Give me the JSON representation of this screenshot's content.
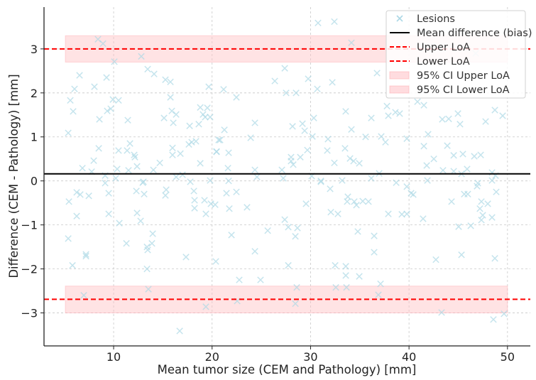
{
  "chart_data": {
    "type": "scatter",
    "title": "",
    "xlabel": "Mean tumor size (CEM and Pathology) [mm]",
    "ylabel": "Difference (CEM - Pathology) [mm]",
    "xlim": [
      2.93,
      52.32
    ],
    "ylim": [
      -3.75,
      3.95
    ],
    "x_ticks": [
      10,
      20,
      30,
      40,
      50
    ],
    "x_tick_labels": [
      "10",
      "20",
      "30",
      "40",
      "50"
    ],
    "y_ticks": [
      -3,
      -2,
      -1,
      0,
      1,
      2,
      3
    ],
    "y_tick_labels": [
      "−3",
      "−2",
      "−1",
      "0",
      "1",
      "2",
      "3"
    ],
    "grid": true,
    "legend_placement": "top-right",
    "bias": 0.16,
    "upper_loa": 3.0,
    "lower_loa": -2.69,
    "ci_upper_loa": [
      2.7,
      3.3
    ],
    "ci_lower_loa": [
      -3.0,
      -2.39
    ],
    "ci_x_range": [
      5.1,
      50.0
    ],
    "colors": {
      "points": "#add8e6",
      "bias": "#000000",
      "loa": "#ff0000",
      "ci": "#ffc0c4"
    },
    "legend": [
      "Lesions",
      "Mean difference (bias)",
      "Upper LoA",
      "Lower LoA",
      "95% CI Upper LoA",
      "95% CI Lower LoA"
    ],
    "series": [
      {
        "name": "Lesions",
        "points": [
          [
            8.41,
            3.22
          ],
          [
            8.92,
            3.12
          ],
          [
            10.07,
            2.71
          ],
          [
            12.81,
            2.83
          ],
          [
            6.54,
            2.4
          ],
          [
            9.28,
            2.35
          ],
          [
            13.46,
            2.54
          ],
          [
            14.11,
            2.43
          ],
          [
            15.26,
            2.3
          ],
          [
            15.77,
            2.25
          ],
          [
            6.03,
            2.09
          ],
          [
            8.05,
            2.14
          ],
          [
            19.66,
            2.14
          ],
          [
            5.6,
            1.83
          ],
          [
            9.93,
            1.85
          ],
          [
            10.5,
            1.83
          ],
          [
            15.77,
            1.9
          ],
          [
            5.89,
            1.58
          ],
          [
            9.35,
            1.59
          ],
          [
            9.71,
            1.64
          ],
          [
            8.56,
            1.4
          ],
          [
            11.44,
            1.38
          ],
          [
            15.12,
            1.43
          ],
          [
            15.91,
            1.59
          ],
          [
            16.35,
            1.51
          ],
          [
            16.06,
            1.32
          ],
          [
            17.72,
            1.25
          ],
          [
            18.65,
            1.29
          ],
          [
            18.8,
            1.67
          ],
          [
            19.52,
            1.66
          ],
          [
            19.08,
            1.51
          ],
          [
            19.3,
            1.45
          ],
          [
            19.8,
            1.45
          ],
          [
            5.39,
            1.09
          ],
          [
            8.49,
            0.74
          ],
          [
            10.5,
            0.69
          ],
          [
            11.37,
            0.69
          ],
          [
            11.66,
            0.85
          ],
          [
            12.09,
            0.59
          ],
          [
            12.16,
            0.54
          ],
          [
            15.98,
            0.75
          ],
          [
            15.98,
            0.59
          ],
          [
            16.78,
            0.62
          ],
          [
            17.64,
            0.83
          ],
          [
            17.93,
            0.88
          ],
          [
            18.36,
            0.9
          ],
          [
            20.45,
            0.66
          ],
          [
            20.67,
            0.93
          ],
          [
            7.98,
            0.46
          ],
          [
            6.83,
            0.29
          ],
          [
            7.77,
            0.21
          ],
          [
            10.36,
            0.27
          ],
          [
            11.51,
            0.24
          ],
          [
            12.38,
            0.33
          ],
          [
            14.04,
            0.25
          ],
          [
            14.69,
            0.41
          ],
          [
            18.8,
            0.4
          ],
          [
            9.14,
            0.12
          ],
          [
            10.22,
            0.06
          ],
          [
            16.35,
            0.09
          ],
          [
            17.0,
            0.14
          ],
          [
            19.8,
            0.01
          ],
          [
            13.03,
            -0.02
          ],
          [
            17.79,
            -0.02
          ],
          [
            30.76,
            3.59
          ],
          [
            32.42,
            3.62
          ],
          [
            34.15,
            3.14
          ],
          [
            27.38,
            2.56
          ],
          [
            26.37,
            2.27
          ],
          [
            29.76,
            2.32
          ],
          [
            21.17,
            2.08
          ],
          [
            22.47,
            1.9
          ],
          [
            27.52,
            2.0
          ],
          [
            28.53,
            2.0
          ],
          [
            30.69,
            2.09
          ],
          [
            32.21,
            2.24
          ],
          [
            36.75,
            2.45
          ],
          [
            37.76,
            1.7
          ],
          [
            37.9,
            1.48
          ],
          [
            33.57,
            1.58
          ],
          [
            36.17,
            1.43
          ],
          [
            30.33,
            1.43
          ],
          [
            24.35,
            1.32
          ],
          [
            21.25,
            1.16
          ],
          [
            28.17,
            1.24
          ],
          [
            29.18,
            1.3
          ],
          [
            29.4,
            1.14
          ],
          [
            20.81,
            0.93
          ],
          [
            23.92,
            0.98
          ],
          [
            30.19,
            1.01
          ],
          [
            31.77,
            0.95
          ],
          [
            34.15,
            1.17
          ],
          [
            35.59,
            1.0
          ],
          [
            37.18,
            1.01
          ],
          [
            37.61,
            0.88
          ],
          [
            20.45,
            0.67
          ],
          [
            21.68,
            0.64
          ],
          [
            28.02,
            0.54
          ],
          [
            28.02,
            0.45
          ],
          [
            28.24,
            0.37
          ],
          [
            28.96,
            0.54
          ],
          [
            29.68,
            0.7
          ],
          [
            31.7,
            0.69
          ],
          [
            33.5,
            0.74
          ],
          [
            32.42,
            0.41
          ],
          [
            34.01,
            0.51
          ],
          [
            34.37,
            0.45
          ],
          [
            34.95,
            0.4
          ],
          [
            21.61,
            0.29
          ],
          [
            24.35,
            0.25
          ],
          [
            27.09,
            0.25
          ],
          [
            24.56,
            0.09
          ],
          [
            27.23,
            0.06
          ],
          [
            30.12,
            0.11
          ],
          [
            21.68,
            0.0
          ],
          [
            31.05,
            0.0
          ],
          [
            33.21,
            0.01
          ],
          [
            36.17,
            0.06
          ],
          [
            36.97,
            0.17
          ],
          [
            38.62,
            1.56
          ],
          [
            39.05,
            1.53
          ],
          [
            40.86,
            1.8
          ],
          [
            41.51,
            1.72
          ],
          [
            43.38,
            1.4
          ],
          [
            44.03,
            1.41
          ],
          [
            44.97,
            1.53
          ],
          [
            45.18,
            1.29
          ],
          [
            47.78,
            1.35
          ],
          [
            48.72,
            1.61
          ],
          [
            49.51,
            1.48
          ],
          [
            39.78,
            0.96
          ],
          [
            41.94,
            1.06
          ],
          [
            41.51,
            0.79
          ],
          [
            43.89,
            0.8
          ],
          [
            44.54,
            0.58
          ],
          [
            45.47,
            0.61
          ],
          [
            46.63,
            0.56
          ],
          [
            47.28,
            0.59
          ],
          [
            41.8,
            0.35
          ],
          [
            42.52,
            0.5
          ],
          [
            43.45,
            0.24
          ],
          [
            44.54,
            0.22
          ],
          [
            45.33,
            0.16
          ],
          [
            45.9,
            0.27
          ],
          [
            48.43,
            0.19
          ],
          [
            48.79,
            0.12
          ],
          [
            38.7,
            -0.04
          ],
          [
            46.99,
            -0.05
          ],
          [
            46.77,
            2.9
          ],
          [
            9.14,
            -0.05
          ],
          [
            12.96,
            -0.04
          ],
          [
            5.46,
            -0.47
          ],
          [
            6.25,
            -0.26
          ],
          [
            6.61,
            -0.31
          ],
          [
            7.48,
            -0.34
          ],
          [
            9.5,
            -0.28
          ],
          [
            12.31,
            -0.23
          ],
          [
            13.1,
            -0.3
          ],
          [
            15.26,
            -0.33
          ],
          [
            15.34,
            -0.2
          ],
          [
            18.15,
            -0.23
          ],
          [
            18.22,
            -0.44
          ],
          [
            18.22,
            -0.62
          ],
          [
            19.23,
            -0.44
          ],
          [
            19.37,
            -0.75
          ],
          [
            19.88,
            -0.52
          ],
          [
            20.31,
            -0.54
          ],
          [
            6.25,
            -0.8
          ],
          [
            9.5,
            -0.75
          ],
          [
            12.38,
            -0.73
          ],
          [
            12.74,
            -0.91
          ],
          [
            10.58,
            -0.96
          ],
          [
            5.39,
            -1.31
          ],
          [
            11.3,
            -1.42
          ],
          [
            13.97,
            -1.2
          ],
          [
            13.89,
            -1.42
          ],
          [
            13.39,
            -1.5
          ],
          [
            13.46,
            -1.57
          ],
          [
            7.19,
            -1.67
          ],
          [
            7.19,
            -1.71
          ],
          [
            17.35,
            -1.73
          ],
          [
            20.38,
            -1.83
          ],
          [
            5.82,
            -1.92
          ],
          [
            13.39,
            -2.0
          ],
          [
            13.53,
            -2.46
          ],
          [
            6.97,
            -2.6
          ],
          [
            19.37,
            -2.86
          ],
          [
            16.71,
            -3.41
          ],
          [
            21.46,
            -0.28
          ],
          [
            22.47,
            -0.25
          ],
          [
            21.75,
            -0.63
          ],
          [
            23.55,
            -0.6
          ],
          [
            29.54,
            -0.52
          ],
          [
            31.05,
            -0.02
          ],
          [
            31.99,
            -0.18
          ],
          [
            33.79,
            -0.36
          ],
          [
            33.72,
            -0.47
          ],
          [
            34.44,
            -0.47
          ],
          [
            34.66,
            -0.55
          ],
          [
            35.3,
            -0.46
          ],
          [
            35.88,
            -0.47
          ],
          [
            32.06,
            -0.71
          ],
          [
            32.78,
            -0.75
          ],
          [
            37.9,
            -0.75
          ],
          [
            27.38,
            -0.88
          ],
          [
            27.74,
            -1.05
          ],
          [
            28.67,
            -1.07
          ],
          [
            28.46,
            -1.26
          ],
          [
            25.65,
            -1.13
          ],
          [
            21.97,
            -1.23
          ],
          [
            34.8,
            -1.15
          ],
          [
            36.46,
            -1.25
          ],
          [
            24.35,
            -1.6
          ],
          [
            36.46,
            -1.62
          ],
          [
            27.74,
            -1.92
          ],
          [
            32.5,
            -1.92
          ],
          [
            33.58,
            -1.94
          ],
          [
            33.58,
            -2.15
          ],
          [
            34.95,
            -2.17
          ],
          [
            22.76,
            -2.25
          ],
          [
            24.92,
            -2.25
          ],
          [
            28.6,
            -2.42
          ],
          [
            32.57,
            -2.42
          ],
          [
            33.65,
            -2.42
          ],
          [
            37.11,
            -2.34
          ],
          [
            36.89,
            -2.59
          ],
          [
            22.55,
            -2.73
          ],
          [
            28.46,
            -2.79
          ],
          [
            39.78,
            -0.13
          ],
          [
            40.21,
            -0.28
          ],
          [
            40.43,
            -0.31
          ],
          [
            41.87,
            0.01
          ],
          [
            46.91,
            -0.12
          ],
          [
            48.43,
            0.01
          ],
          [
            48.86,
            -0.25
          ],
          [
            45.61,
            -0.3
          ],
          [
            45.97,
            -0.3
          ],
          [
            44.32,
            -0.47
          ],
          [
            47.35,
            -0.47
          ],
          [
            48.0,
            -0.52
          ],
          [
            47.2,
            -0.63
          ],
          [
            39.27,
            -0.76
          ],
          [
            39.78,
            -0.75
          ],
          [
            41.43,
            -0.86
          ],
          [
            47.49,
            -0.78
          ],
          [
            47.35,
            -0.89
          ],
          [
            48.43,
            -0.83
          ],
          [
            45.04,
            -1.04
          ],
          [
            46.27,
            -1.02
          ],
          [
            42.73,
            -1.79
          ],
          [
            45.33,
            -1.68
          ],
          [
            48.72,
            -1.76
          ],
          [
            43.31,
            -2.99
          ],
          [
            48.57,
            -3.15
          ],
          [
            49.65,
            -3.02
          ]
        ]
      }
    ]
  }
}
